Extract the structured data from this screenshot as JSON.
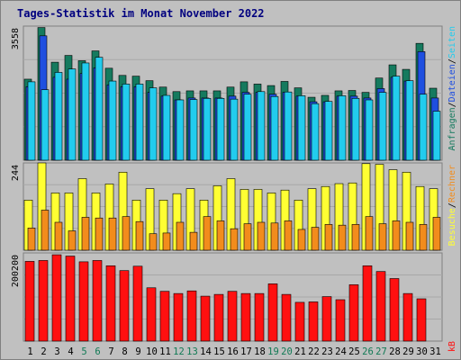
{
  "title": "Tages-Statistik im Monat November 2022",
  "colors": {
    "background": "#c0c0c0",
    "panel": "#c0c0c0",
    "grid": "#a8a8a8",
    "axis_label": "#000000",
    "weekend_label": "#117a55",
    "title": "#00007f",
    "hits": "#157a5e",
    "files": "#1f4fe0",
    "pages": "#22ccee",
    "visits": "#ffff33",
    "sites": "#f28c1c",
    "kbytes": "#ff1010"
  },
  "chart_data": [
    {
      "type": "bar",
      "panel": "top",
      "y_tick_label": "3558",
      "ylim": [
        0,
        3558
      ],
      "categories": [
        "1",
        "2",
        "3",
        "4",
        "5",
        "6",
        "7",
        "8",
        "9",
        "10",
        "11",
        "12",
        "13",
        "14",
        "15",
        "16",
        "17",
        "18",
        "19",
        "20",
        "21",
        "22",
        "23",
        "24",
        "25",
        "26",
        "27",
        "28",
        "29",
        "30",
        "31"
      ],
      "weekend_days": [
        5,
        6,
        12,
        13,
        19,
        20,
        26,
        27
      ],
      "series": [
        {
          "name": "Anfragen",
          "color_key": "hits",
          "values": [
            2150,
            3520,
            2600,
            2780,
            2640,
            2900,
            2440,
            2250,
            2230,
            2110,
            1940,
            1820,
            1840,
            1840,
            1840,
            1940,
            2080,
            2020,
            1980,
            2090,
            1920,
            1670,
            1720,
            1840,
            1850,
            1800,
            2180,
            2530,
            2410,
            3100,
            1910
          ]
        },
        {
          "name": "Dateien",
          "color_key": "files",
          "values": [
            1950,
            3300,
            2200,
            2150,
            2300,
            2450,
            2000,
            1950,
            1950,
            1800,
            1700,
            1600,
            1650,
            1650,
            1650,
            1700,
            1800,
            1800,
            1750,
            1800,
            1700,
            1550,
            1550,
            1700,
            1700,
            1650,
            1900,
            2200,
            2100,
            2880,
            1650
          ]
        },
        {
          "name": "Seiten",
          "color_key": "pages",
          "values": [
            2080,
            1870,
            2330,
            2420,
            2580,
            2730,
            2100,
            2020,
            2020,
            1920,
            1720,
            1600,
            1610,
            1640,
            1640,
            1620,
            1750,
            1820,
            1690,
            1810,
            1710,
            1500,
            1560,
            1710,
            1640,
            1600,
            1800,
            2230,
            2110,
            1750,
            1300
          ]
        }
      ]
    },
    {
      "type": "bar",
      "panel": "middle",
      "y_tick_label": "244",
      "ylim": [
        0,
        244
      ],
      "categories": [
        "1",
        "2",
        "3",
        "4",
        "5",
        "6",
        "7",
        "8",
        "9",
        "10",
        "11",
        "12",
        "13",
        "14",
        "15",
        "16",
        "17",
        "18",
        "19",
        "20",
        "21",
        "22",
        "23",
        "24",
        "25",
        "26",
        "27",
        "28",
        "29",
        "30",
        "31"
      ],
      "series": [
        {
          "name": "Besuche",
          "color_key": "visits",
          "values": [
            140,
            244,
            160,
            160,
            200,
            160,
            185,
            218,
            140,
            172,
            140,
            158,
            172,
            140,
            180,
            200,
            170,
            170,
            160,
            168,
            140,
            172,
            178,
            186,
            188,
            242,
            240,
            225,
            218,
            178,
            172
          ]
        },
        {
          "name": "Rechner",
          "color_key": "sites",
          "values": [
            62,
            112,
            78,
            54,
            92,
            90,
            90,
            94,
            80,
            46,
            48,
            78,
            50,
            94,
            82,
            60,
            74,
            78,
            76,
            82,
            58,
            64,
            72,
            70,
            72,
            94,
            74,
            82,
            78,
            72,
            92
          ]
        }
      ]
    },
    {
      "type": "bar",
      "panel": "bottom",
      "y_tick_label": "200200",
      "ylim": [
        0,
        200200
      ],
      "categories": [
        "1",
        "2",
        "3",
        "4",
        "5",
        "6",
        "7",
        "8",
        "9",
        "10",
        "11",
        "12",
        "13",
        "14",
        "15",
        "16",
        "17",
        "18",
        "19",
        "20",
        "21",
        "22",
        "23",
        "24",
        "25",
        "26",
        "27",
        "28",
        "29",
        "30",
        "31"
      ],
      "series": [
        {
          "name": "kB",
          "color_key": "kbytes",
          "values": [
            181000,
            183000,
            196000,
            193000,
            180000,
            183000,
            171000,
            160000,
            170000,
            121000,
            113000,
            108000,
            114000,
            102000,
            106000,
            113000,
            108000,
            108000,
            130000,
            106000,
            88000,
            89000,
            101000,
            94000,
            128000,
            171000,
            158000,
            142000,
            108000,
            96000,
            null
          ]
        }
      ]
    }
  ],
  "right_labels": {
    "top": [
      "Anfragen",
      "/",
      "Dateien",
      "/",
      "Seiten"
    ],
    "middle": [
      "Besuche",
      "/",
      "Rechner"
    ],
    "bottom": [
      "kB"
    ]
  }
}
